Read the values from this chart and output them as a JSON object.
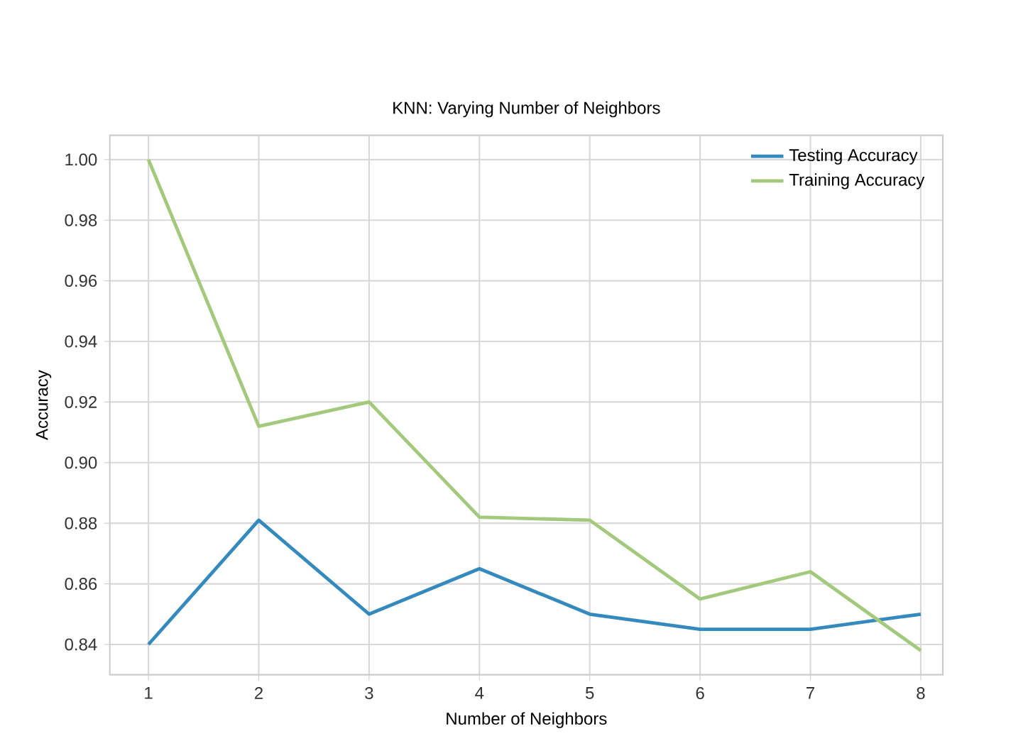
{
  "chart_data": {
    "type": "line",
    "title": "KNN: Varying Number of Neighbors",
    "xlabel": "Number of Neighbors",
    "ylabel": "Accuracy",
    "x": [
      1,
      2,
      3,
      4,
      5,
      6,
      7,
      8
    ],
    "series": [
      {
        "name": "Testing Accuracy",
        "color": "#348abd",
        "values": [
          0.84,
          0.881,
          0.85,
          0.865,
          0.85,
          0.845,
          0.845,
          0.85
        ]
      },
      {
        "name": "Training Accuracy",
        "color": "#a3c97c",
        "values": [
          1.0,
          0.912,
          0.92,
          0.882,
          0.881,
          0.855,
          0.864,
          0.838
        ]
      }
    ],
    "xlim": [
      0.65,
      8.2
    ],
    "ylim": [
      0.83,
      1.008
    ],
    "xticks": [
      1,
      2,
      3,
      4,
      5,
      6,
      7,
      8
    ],
    "yticks": [
      {
        "value": 0.84,
        "label": "0.84"
      },
      {
        "value": 0.86,
        "label": "0.86"
      },
      {
        "value": 0.88,
        "label": "0.88"
      },
      {
        "value": 0.9,
        "label": "0.90"
      },
      {
        "value": 0.92,
        "label": "0.92"
      },
      {
        "value": 0.94,
        "label": "0.94"
      },
      {
        "value": 0.96,
        "label": "0.96"
      },
      {
        "value": 0.98,
        "label": "0.98"
      },
      {
        "value": 1.0,
        "label": "1.00"
      }
    ],
    "grid": true,
    "legend": "top right",
    "line_style": "solid",
    "marker": "none"
  }
}
